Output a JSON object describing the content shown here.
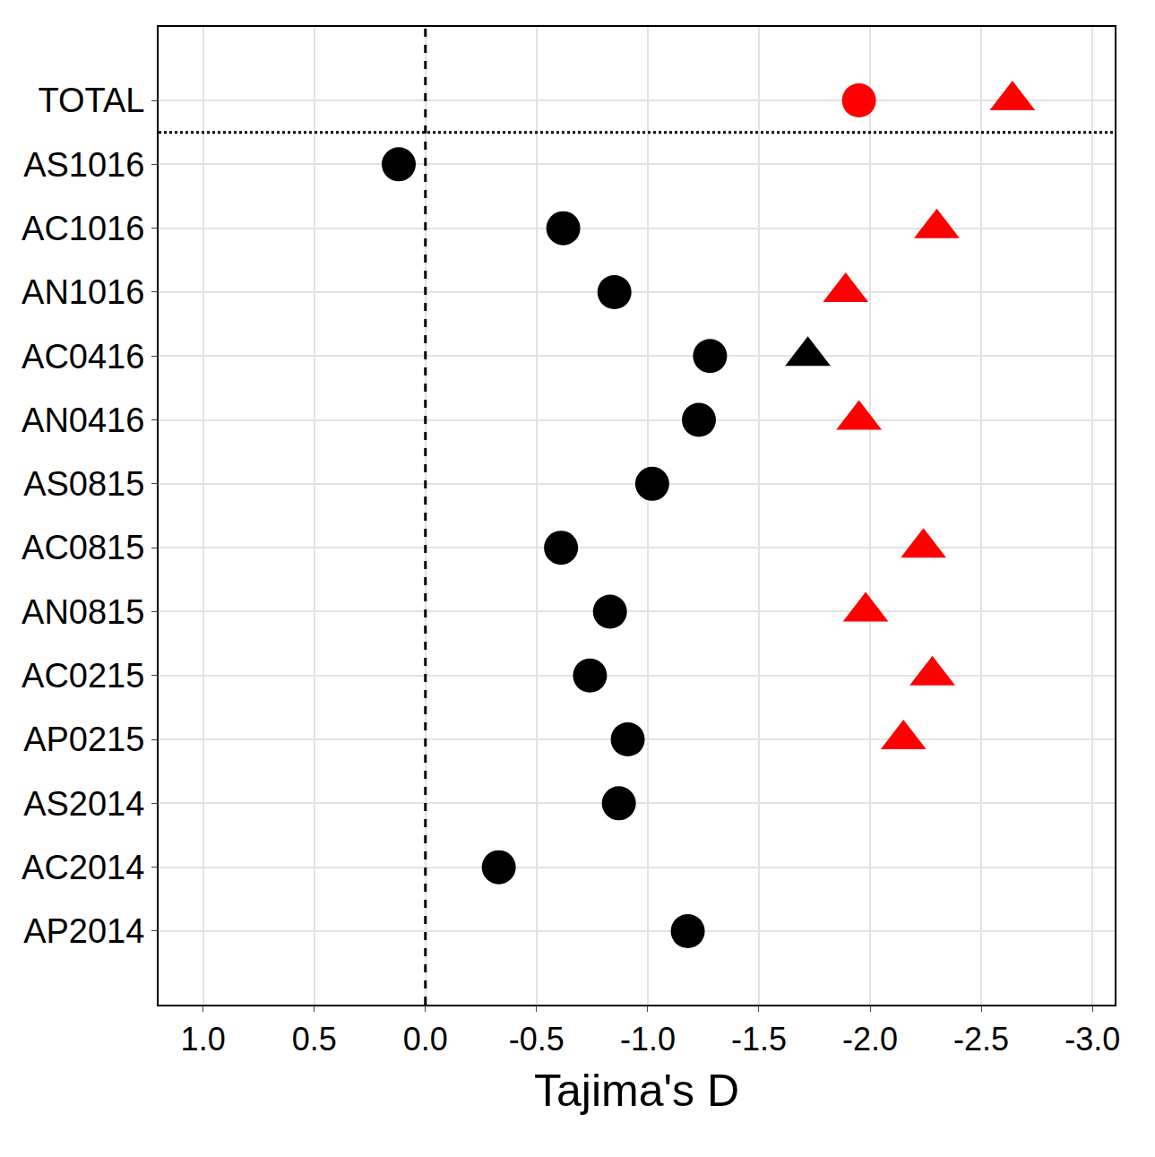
{
  "chart_data": {
    "type": "scatter",
    "orientation": "horizontal",
    "x_label": "Tajima's D",
    "categories": [
      "TOTAL",
      "AS1016",
      "AC1016",
      "AN1016",
      "AC0416",
      "AN0416",
      "AS0815",
      "AC0815",
      "AN0815",
      "AC0215",
      "AP0215",
      "AS2014",
      "AC2014",
      "AP2014"
    ],
    "series": [
      {
        "marker": "circle",
        "values": [
          -1.95,
          0.12,
          -0.62,
          -0.85,
          -1.28,
          -1.23,
          -1.02,
          -0.61,
          -0.83,
          -0.74,
          -0.91,
          -0.87,
          -0.33,
          -1.18
        ],
        "colors": [
          "#ff0000",
          "#000000",
          "#000000",
          "#000000",
          "#000000",
          "#000000",
          "#000000",
          "#000000",
          "#000000",
          "#000000",
          "#000000",
          "#000000",
          "#000000",
          "#000000"
        ]
      },
      {
        "marker": "triangle",
        "values": [
          -2.64,
          null,
          -2.3,
          -1.89,
          -1.72,
          -1.95,
          null,
          -2.24,
          -1.98,
          -2.28,
          -2.15,
          null,
          null,
          null
        ],
        "colors": [
          "#ff0000",
          "#000000",
          "#ff0000",
          "#ff0000",
          "#000000",
          "#ff0000",
          "#000000",
          "#ff0000",
          "#ff0000",
          "#ff0000",
          "#ff0000",
          "#000000",
          "#000000",
          "#000000"
        ]
      }
    ],
    "reference_line": 0,
    "xlim": [
      1.2,
      -3.1
    ],
    "xticks": [
      {
        "value": 1,
        "label": "1.0"
      },
      0.5,
      {
        "value": 0,
        "label": "0.0"
      },
      -0.5,
      {
        "value": -1,
        "label": "-1.0"
      },
      -1.5,
      {
        "value": -2,
        "label": "-2.0"
      },
      -2.5,
      {
        "value": -3,
        "label": "-3.0"
      }
    ],
    "grid": true
  }
}
